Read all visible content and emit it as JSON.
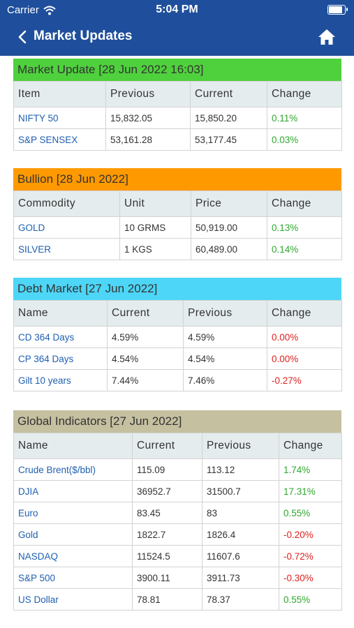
{
  "status": {
    "carrier": "Carrier",
    "time": "5:04 PM"
  },
  "nav": {
    "title": "Market Updates"
  },
  "colors": {
    "bar": "#1f4f9c",
    "market": "#4fd13d",
    "bullion": "#ff9900",
    "debt": "#4dd6f7",
    "global": "#c5c0a0",
    "positive": "#2ea82e",
    "negative": "#e02020"
  },
  "market": {
    "title": "Market Update [28 Jun 2022 16:03]",
    "columns": [
      "Item",
      "Previous",
      "Current",
      "Change"
    ],
    "rows": [
      [
        "NIFTY 50",
        "15,832.05",
        "15,850.20",
        "0.11%"
      ],
      [
        "S&P SENSEX",
        "53,161.28",
        "53,177.45",
        "0.03%"
      ]
    ]
  },
  "bullion": {
    "title": "Bullion [28 Jun 2022]",
    "columns": [
      "Commodity",
      "Unit",
      "Price",
      "Change"
    ],
    "rows": [
      [
        "GOLD",
        "10 GRMS",
        "50,919.00",
        "0.13%"
      ],
      [
        "SILVER",
        "1 KGS",
        "60,489.00",
        "0.14%"
      ]
    ]
  },
  "debt": {
    "title": "Debt Market [27 Jun 2022]",
    "columns": [
      "Name",
      "Current",
      "Previous",
      "Change"
    ],
    "rows": [
      [
        "CD 364 Days",
        "4.59%",
        "4.59%",
        "0.00%"
      ],
      [
        "CP 364 Days",
        "4.54%",
        "4.54%",
        "0.00%"
      ],
      [
        "Gilt 10 years",
        "7.44%",
        "7.46%",
        "-0.27%"
      ]
    ]
  },
  "global": {
    "title": "Global Indicators [27 Jun 2022]",
    "columns": [
      "Name",
      "Current",
      "Previous",
      "Change"
    ],
    "rows": [
      [
        "Crude Brent($/bbl)",
        "115.09",
        "113.12",
        "1.74%"
      ],
      [
        "DJIA",
        "36952.7",
        "31500.7",
        "17.31%"
      ],
      [
        "Euro",
        "83.45",
        "83",
        "0.55%"
      ],
      [
        "Gold",
        "1822.7",
        "1826.4",
        "-0.20%"
      ],
      [
        "NASDAQ",
        "11524.5",
        "11607.6",
        "-0.72%"
      ],
      [
        "S&P 500",
        "3900.11",
        "3911.73",
        "-0.30%"
      ],
      [
        "US Dollar",
        "78.81",
        "78.37",
        "0.55%"
      ]
    ]
  }
}
